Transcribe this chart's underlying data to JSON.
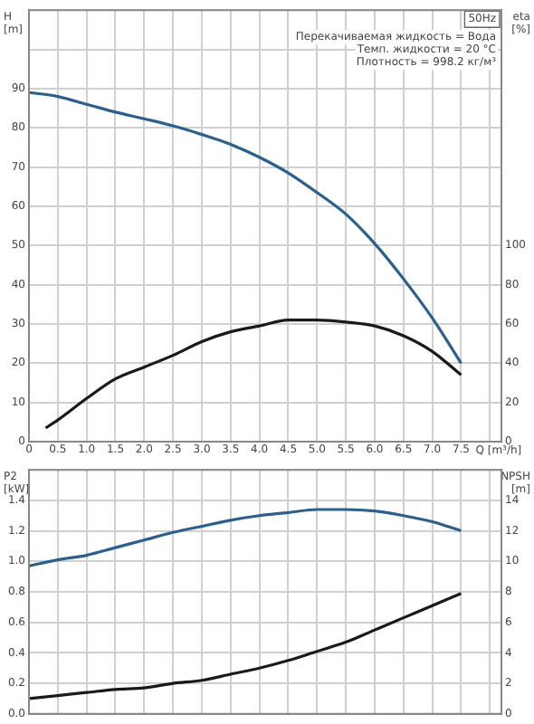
{
  "chart_data": [
    {
      "type": "line",
      "xlabel": "Q [m³/h]",
      "ylabel": "H [m]",
      "y2label": "eta [%]",
      "annotations": [
        "50Hz",
        "Перекачиваемая жидкость = Вода",
        "Темп. жидкости = 20 °C",
        "Плотность = 998.2 кг/м³"
      ],
      "xlim": [
        0,
        8.2
      ],
      "xticks": [
        0,
        0.5,
        {
          "value": 1,
          "label": "1.0"
        },
        1.5,
        {
          "value": 2,
          "label": "2.0"
        },
        2.5,
        {
          "value": 3,
          "label": "3.0"
        },
        3.5,
        {
          "value": 4,
          "label": "4.0"
        },
        4.5,
        {
          "value": 5,
          "label": "5.0"
        },
        5.5,
        {
          "value": 6,
          "label": "6.0"
        },
        6.5,
        {
          "value": 7,
          "label": "7.0"
        },
        7.5,
        {
          "value": 8,
          "label": null
        }
      ],
      "ylim": [
        0,
        110
      ],
      "yticks": [
        0,
        10,
        20,
        30,
        40,
        50,
        60,
        70,
        80,
        90,
        {
          "value": 100,
          "label": null
        },
        {
          "value": 110,
          "label": null
        }
      ],
      "y2lim": [
        0,
        220
      ],
      "y2ticks": [
        0,
        20,
        40,
        60,
        80,
        100
      ],
      "grid": true,
      "legend": false,
      "series": [
        {
          "color": "#2b5f8e",
          "x": [
            0,
            0.5,
            1,
            1.5,
            2,
            2.5,
            3,
            3.5,
            4,
            4.5,
            5,
            5.5,
            6,
            6.5,
            7,
            7.5
          ],
          "values": [
            89,
            88,
            86,
            84,
            82.3,
            80.5,
            78.3,
            75.8,
            72.5,
            68.5,
            63.5,
            58,
            50.5,
            41.5,
            31.5,
            20
          ]
        },
        {
          "color": "#1a1a1a",
          "axis": "y2",
          "x": [
            0.29,
            0.5,
            1,
            1.5,
            2,
            2.5,
            3,
            3.5,
            4,
            4.5,
            5,
            5.5,
            6,
            6.5,
            7,
            7.5
          ],
          "values": [
            7,
            11,
            22,
            32,
            38,
            44,
            51,
            56,
            59,
            62,
            62,
            61,
            59,
            54,
            46,
            34
          ]
        }
      ]
    },
    {
      "type": "line",
      "ylabel": "P2 [kW]",
      "y2label": "NPSH [m]",
      "tick_labels": "y",
      "xlim": [
        0,
        8.2
      ],
      "xticks": [
        0,
        0.5,
        1,
        1.5,
        2,
        2.5,
        3,
        3.5,
        4,
        4.5,
        5,
        5.5,
        6,
        6.5,
        7,
        7.5,
        8
      ],
      "ylim": [
        0,
        1.6
      ],
      "yticks": [
        {
          "value": 0,
          "label": "0.0"
        },
        0.2,
        0.4,
        0.6,
        0.8,
        {
          "value": 1,
          "label": "1.0"
        },
        1.2,
        1.4,
        {
          "value": 1.6,
          "label": null
        }
      ],
      "y2lim": [
        0,
        16
      ],
      "y2ticks": [
        0,
        2,
        4,
        6,
        8,
        10,
        12,
        14
      ],
      "grid": true,
      "legend": false,
      "series": [
        {
          "color": "#2b5f8e",
          "x": [
            0,
            0.5,
            1,
            1.5,
            2,
            2.5,
            3,
            3.5,
            4,
            4.5,
            5,
            5.5,
            6,
            6.5,
            7,
            7.5
          ],
          "values": [
            0.97,
            1.01,
            1.04,
            1.09,
            1.14,
            1.19,
            1.23,
            1.27,
            1.3,
            1.32,
            1.34,
            1.34,
            1.33,
            1.3,
            1.26,
            1.2
          ]
        },
        {
          "color": "#1a1a1a",
          "axis": "y2",
          "x": [
            0,
            0.5,
            1,
            1.5,
            2,
            2.5,
            3,
            3.5,
            4,
            4.5,
            5,
            5.5,
            6,
            6.5,
            7,
            7.5
          ],
          "values": [
            1,
            1.2,
            1.4,
            1.6,
            1.7,
            2,
            2.2,
            2.6,
            3,
            3.5,
            4.1,
            4.7,
            5.5,
            6.3,
            7.1,
            7.9
          ]
        }
      ]
    }
  ]
}
